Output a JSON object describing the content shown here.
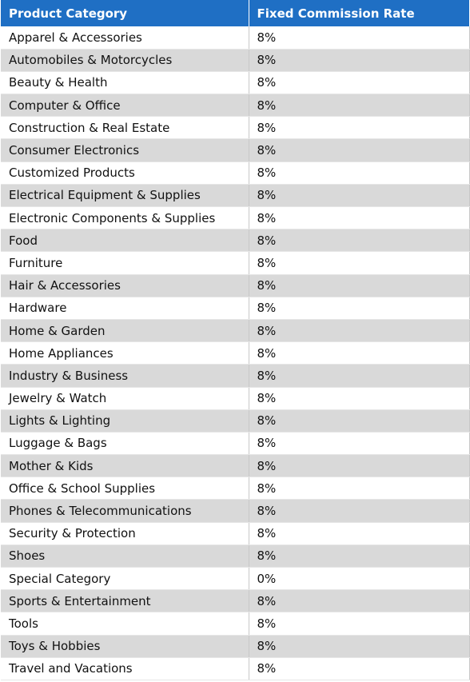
{
  "table": {
    "header": [
      "Product Category",
      "Fixed Commission Rate"
    ],
    "rows": [
      [
        "Apparel & Accessories",
        "8%"
      ],
      [
        "Automobiles & Motorcycles",
        "8%"
      ],
      [
        "Beauty & Health",
        "8%"
      ],
      [
        "Computer & Office",
        "8%"
      ],
      [
        "Construction & Real Estate",
        "8%"
      ],
      [
        "Consumer Electronics",
        "8%"
      ],
      [
        "Customized Products",
        "8%"
      ],
      [
        "Electrical Equipment & Supplies",
        "8%"
      ],
      [
        "Electronic Components & Supplies",
        "8%"
      ],
      [
        "Food",
        "8%"
      ],
      [
        "Furniture",
        "8%"
      ],
      [
        "Hair & Accessories",
        "8%"
      ],
      [
        "Hardware",
        "8%"
      ],
      [
        "Home & Garden",
        "8%"
      ],
      [
        "Home Appliances",
        "8%"
      ],
      [
        "Industry & Business",
        "8%"
      ],
      [
        "Jewelry & Watch",
        "8%"
      ],
      [
        "Lights & Lighting",
        "8%"
      ],
      [
        "Luggage & Bags",
        "8%"
      ],
      [
        "Mother & Kids",
        "8%"
      ],
      [
        "Office & School Supplies",
        "8%"
      ],
      [
        "Phones & Telecommunications",
        "8%"
      ],
      [
        "Security & Protection",
        "8%"
      ],
      [
        "Shoes",
        "8%"
      ],
      [
        "Special Category",
        "0%"
      ],
      [
        "Sports & Entertainment",
        "8%"
      ],
      [
        "Tools",
        "8%"
      ],
      [
        "Toys & Hobbies",
        "8%"
      ],
      [
        "Travel and Vacations",
        "8%"
      ]
    ]
  }
}
